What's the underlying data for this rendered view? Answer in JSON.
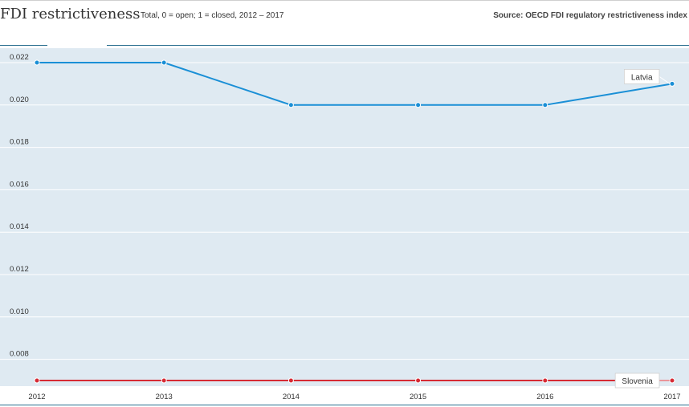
{
  "header": {
    "title": "FDI restrictiveness",
    "subtitle": "Total, 0 = open; 1 = closed, 2012 – 2017",
    "source": "Source: OECD FDI regulatory restrictiveness index"
  },
  "colors": {
    "plot_background": "#dfeaf2",
    "gridline": "#ffffff",
    "latvia": "#1a8fd6",
    "slovenia": "#d62b35"
  },
  "chart_data": {
    "type": "line",
    "title": "FDI restrictiveness",
    "subtitle": "Total, 0 = open; 1 = closed, 2012 – 2017",
    "x": [
      2012,
      2013,
      2014,
      2015,
      2016,
      2017
    ],
    "x_tick_labels": [
      "2012",
      "2013",
      "2014",
      "2015",
      "2016",
      "2017"
    ],
    "y_tick_values": [
      0.008,
      0.01,
      0.012,
      0.014,
      0.016,
      0.018,
      0.02,
      0.022
    ],
    "y_tick_labels": [
      "0.008",
      "0.010",
      "0.012",
      "0.014",
      "0.016",
      "0.018",
      "0.020",
      "0.022"
    ],
    "ylim": [
      0.007,
      0.0225
    ],
    "grid": true,
    "series": [
      {
        "name": "Latvia",
        "values": [
          0.022,
          0.022,
          0.02,
          0.02,
          0.02,
          0.021
        ]
      },
      {
        "name": "Slovenia",
        "values": [
          0.007,
          0.007,
          0.007,
          0.007,
          0.007,
          0.007
        ]
      }
    ]
  }
}
